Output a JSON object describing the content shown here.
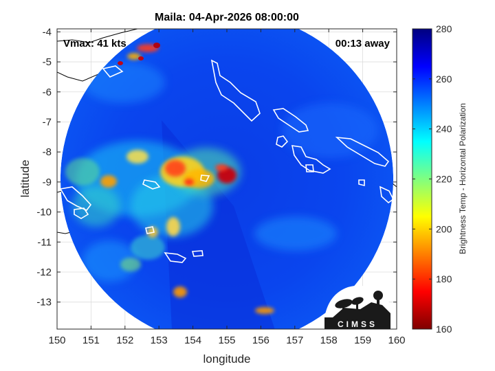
{
  "chart_data": {
    "type": "heatmap",
    "title": "Maila: 04-Apr-2026 08:00:00",
    "xlabel": "longitude",
    "ylabel": "latitude",
    "xlim": [
      150,
      160
    ],
    "ylim": [
      -13.9,
      -3.9
    ],
    "y_reversed": true,
    "grid": true,
    "x_ticks": [
      150,
      151,
      152,
      153,
      154,
      155,
      156,
      157,
      158,
      159,
      160
    ],
    "y_ticks": [
      -4,
      -5,
      -6,
      -7,
      -8,
      -9,
      -10,
      -11,
      -12,
      -13
    ],
    "swath_center": [
      155,
      -8.9
    ],
    "swath_radius_deg": 4.9,
    "annotations": {
      "vmax": "Vmax: 41 kts",
      "time_offset": "00:13 away"
    },
    "colorbar": {
      "label": "Brightness Temp - Horizontal Polarization",
      "min": 160,
      "max": 280,
      "ticks": [
        280,
        260,
        240,
        220,
        200,
        180,
        160
      ],
      "colormap": "jet"
    },
    "logo_text": "CIMSS",
    "cold_features": [
      {
        "lon": 153.3,
        "lat": -8.7,
        "value": 196
      },
      {
        "lon": 153.9,
        "lat": -9.1,
        "value": 200
      },
      {
        "lon": 155.1,
        "lat": -8.9,
        "value": 175
      },
      {
        "lon": 152.6,
        "lat": -4.9,
        "value": 178
      },
      {
        "lon": 151.6,
        "lat": -9.0,
        "value": 205
      },
      {
        "lon": 153.6,
        "lat": -12.6,
        "value": 195
      },
      {
        "lon": 153.5,
        "lat": -10.4,
        "value": 212
      },
      {
        "lon": 156.0,
        "lat": -13.2,
        "value": 190
      },
      {
        "lon": 152.5,
        "lat": -11.5,
        "value": 215
      },
      {
        "lon": 150.8,
        "lat": -9.8,
        "value": 225
      }
    ]
  },
  "colors": {
    "background": "#ffffff",
    "axes_background": "#ffffff",
    "grid": "#dcdcdc",
    "coast_land": "#000000",
    "coast_swath": "#ffffff"
  }
}
